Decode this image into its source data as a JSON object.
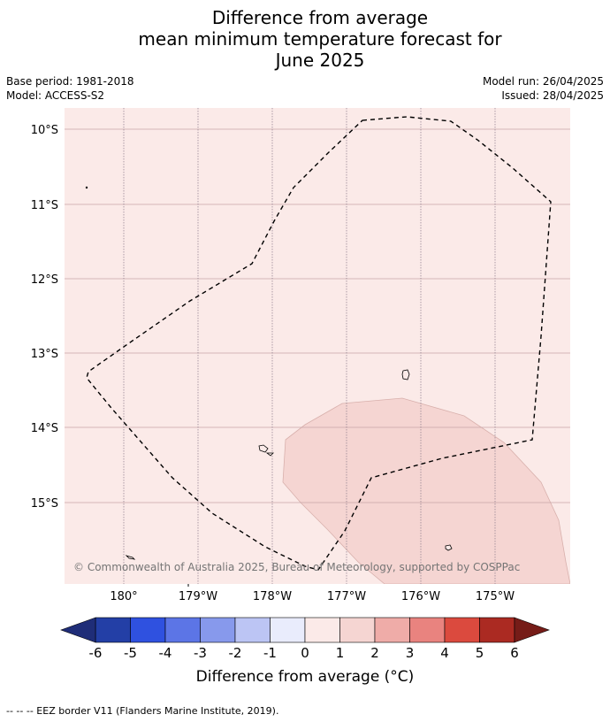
{
  "header": {
    "title_lines": [
      "Difference from average",
      "mean minimum temperature forecast for",
      "June 2025"
    ],
    "base_period": "Base period: 1981-2018",
    "model": "Model: ACCESS-S2",
    "model_run": "Model run: 26/04/2025",
    "issued": "Issued: 28/04/2025"
  },
  "map": {
    "background_color": "#fbeae8",
    "anomaly_fill_color": "#f5d5d2",
    "latitude_labels": [
      "10°S",
      "11°S",
      "12°S",
      "13°S",
      "14°S",
      "15°S"
    ],
    "longitude_labels": [
      "180°",
      "179°W",
      "178°W",
      "177°W",
      "176°W",
      "175°W"
    ],
    "copyright": "© Commonwealth of Australia 2025, Bureau of Meteorology, supported by COSPPac"
  },
  "colorbar": {
    "ticks": [
      "-6",
      "-5",
      "-4",
      "-3",
      "-2",
      "-1",
      "0",
      "1",
      "2",
      "3",
      "4",
      "5",
      "6"
    ],
    "colors": [
      "#233fa6",
      "#2f51e0",
      "#5c75e6",
      "#8799ec",
      "#bcc5f4",
      "#e9ecfc",
      "#fbeae8",
      "#f5d5d2",
      "#efaca8",
      "#e9837f",
      "#db4a3e",
      "#ab2a22"
    ],
    "under_color": "#1f2d78",
    "over_color": "#761c18",
    "label": "Difference from average (°C)"
  },
  "footer": {
    "legend": "--  --  -- EEZ border V11 (Flanders Marine Institute, 2019)."
  }
}
